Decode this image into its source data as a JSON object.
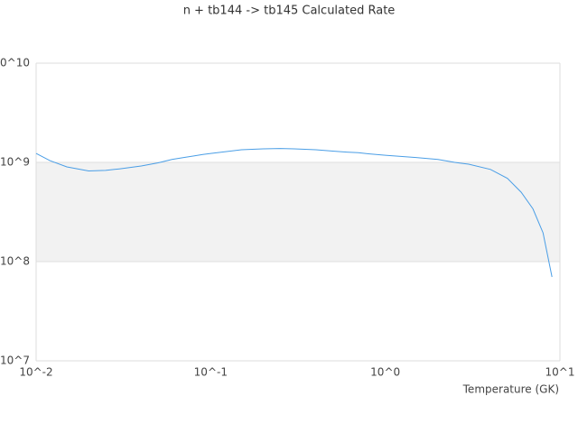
{
  "chart_data": {
    "type": "line",
    "title": "n + tb144 -> tb145 Calculated Rate",
    "x_label": "Temperature (GK)",
    "log_x": true,
    "log_y": true,
    "grid": true,
    "xlim": [
      0.01,
      10
    ],
    "ylim": [
      10000000,
      10000000000
    ],
    "xticks": [
      {
        "value": 0.01,
        "label": "10^-2"
      },
      {
        "value": 0.1,
        "label": "10^-1"
      },
      {
        "value": 1,
        "label": "10^0"
      },
      {
        "value": 10,
        "label": "10^1"
      }
    ],
    "yticks": [
      {
        "value": 10000000,
        "label": "10^7"
      },
      {
        "value": 100000000,
        "label": "10^8"
      },
      {
        "value": 1000000000,
        "label": "10^9"
      },
      {
        "value": 10000000000,
        "label": "10^10"
      }
    ],
    "x": [
      0.01,
      0.012,
      0.015,
      0.02,
      0.025,
      0.03,
      0.04,
      0.05,
      0.06,
      0.07,
      0.08,
      0.09,
      0.1,
      0.15,
      0.2,
      0.25,
      0.3,
      0.4,
      0.5,
      0.6,
      0.7,
      0.8,
      1,
      1.5,
      2,
      2.5,
      3,
      4,
      5,
      6,
      7,
      8,
      9
    ],
    "series": [
      {
        "color": "#4a9ee6",
        "values": [
          1230000000,
          1040000000,
          900000000,
          820000000,
          830000000,
          860000000,
          920000000,
          990000000,
          1070000000,
          1120000000,
          1160000000,
          1200000000,
          1230000000,
          1340000000,
          1370000000,
          1380000000,
          1370000000,
          1340000000,
          1300000000,
          1270000000,
          1250000000,
          1220000000,
          1180000000,
          1120000000,
          1070000000,
          1000000000,
          960000000,
          850000000,
          690000000,
          500000000,
          340000000,
          195000000,
          70000000
        ]
      }
    ]
  }
}
